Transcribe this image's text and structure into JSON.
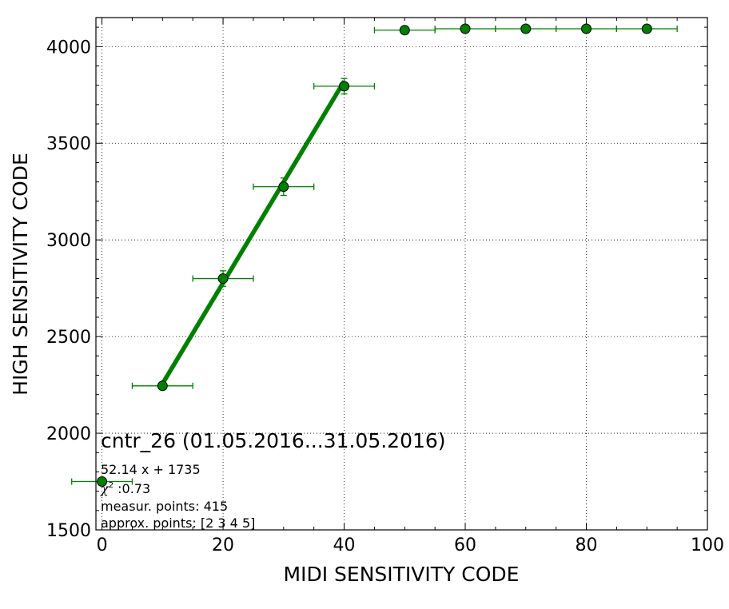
{
  "chart_data": {
    "type": "scatter",
    "title": "cntr_26 (01.05.2016...31.05.2016)",
    "xlabel": "MIDI SENSITIVITY CODE",
    "ylabel": "HIGH SENSITIVITY CODE",
    "xlim": [
      -1,
      100
    ],
    "ylim": [
      1500,
      4150
    ],
    "xticks": [
      "0",
      "20",
      "40",
      "60",
      "80",
      "100"
    ],
    "yticks": [
      "1500",
      "2000",
      "2500",
      "3000",
      "3500",
      "4000"
    ],
    "grid": true,
    "color": "#008000",
    "series": [
      {
        "points": [
          {
            "x": 0,
            "y": 1750,
            "xerr": 5,
            "yerr": 0
          },
          {
            "x": 10,
            "y": 2245,
            "xerr": 5,
            "yerr": 0
          },
          {
            "x": 20,
            "y": 2800,
            "xerr": 5,
            "yerr": 40
          },
          {
            "x": 30,
            "y": 3275,
            "xerr": 5,
            "yerr": 45
          },
          {
            "x": 40,
            "y": 3795,
            "xerr": 5,
            "yerr": 40
          },
          {
            "x": 50,
            "y": 4085,
            "xerr": 5,
            "yerr": 0
          },
          {
            "x": 60,
            "y": 4092,
            "xerr": 5,
            "yerr": 0
          },
          {
            "x": 70,
            "y": 4092,
            "xerr": 5,
            "yerr": 0
          },
          {
            "x": 80,
            "y": 4092,
            "xerr": 5,
            "yerr": 0
          },
          {
            "x": 90,
            "y": 4092,
            "xerr": 5,
            "yerr": 0
          }
        ]
      }
    ],
    "fit": {
      "slope": 52.14,
      "intercept": 1735,
      "x_range": [
        10,
        40
      ]
    },
    "annotations": {
      "fit_label": "52.14 x + 1735",
      "chi2_symbol": "χ",
      "chi2_exp": "2",
      "chi2_value": " :0.73",
      "points_label": "measur. points: 415",
      "approx_label": "approx. points: [2 3 4 5]"
    }
  }
}
